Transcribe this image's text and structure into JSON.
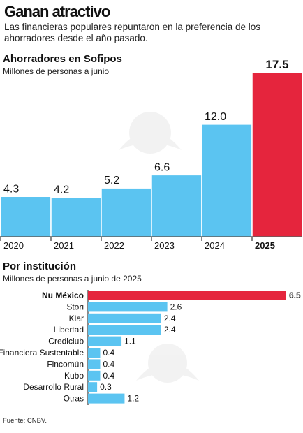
{
  "header": {
    "title": "Ganan atractivo",
    "subtitle": "Las financieras populares repuntaron en la preferencia de los ahorradores desde el año pasado."
  },
  "sections": {
    "annual": {
      "title": "Ahorradores en Sofipos",
      "subtitle": "Millones de personas a junio"
    },
    "institution": {
      "title": "Por institución",
      "subtitle": "Millones de personas a junio de 2025"
    }
  },
  "source": "Fuente: CNBV.",
  "colors": {
    "blue": "#5BC4F1",
    "red": "#E5253D",
    "outline": "#ffffff"
  },
  "chart_data": [
    {
      "type": "bar",
      "title": "Ahorradores en Sofipos",
      "subtitle": "Millones de personas a junio",
      "categories": [
        "2020",
        "2021",
        "2022",
        "2023",
        "2024",
        "2025"
      ],
      "values": [
        4.3,
        4.2,
        5.2,
        6.6,
        12.0,
        17.5
      ],
      "value_labels": [
        "4.3",
        "4.2",
        "5.2",
        "6.6",
        "12.0",
        "17.5"
      ],
      "highlight": [
        false,
        false,
        false,
        false,
        false,
        true
      ],
      "orientation": "vertical"
    },
    {
      "type": "bar",
      "title": "Por institución",
      "subtitle": "Millones de personas a junio de 2025",
      "categories": [
        "Nu México",
        "Stori",
        "Klar",
        "Libertad",
        "Crediclub",
        "Financiera Sustentable",
        "Fincomún",
        "Kubo",
        "Desarrollo Rural",
        "Otras"
      ],
      "values": [
        6.5,
        2.6,
        2.4,
        2.4,
        1.1,
        0.4,
        0.4,
        0.4,
        0.3,
        1.2
      ],
      "value_labels": [
        "6.5",
        "2.6",
        "2.4",
        "2.4",
        "1.1",
        "0.4",
        "0.4",
        "0.4",
        "0.3",
        "1.2"
      ],
      "highlight": [
        true,
        false,
        false,
        false,
        false,
        false,
        false,
        false,
        false,
        false
      ],
      "orientation": "horizontal"
    }
  ]
}
